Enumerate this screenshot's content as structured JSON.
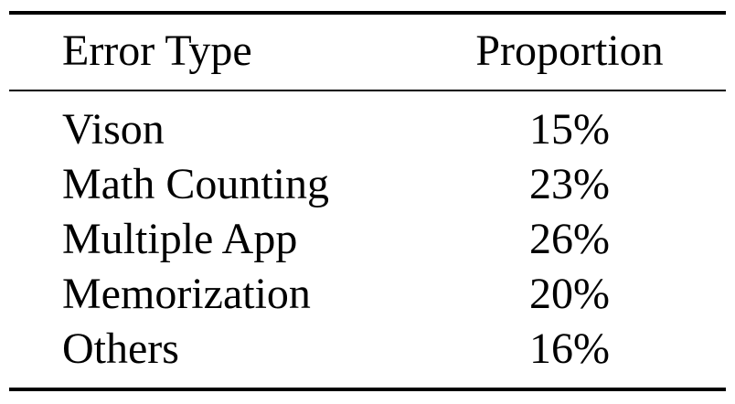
{
  "table": {
    "headers": {
      "error_type": "Error Type",
      "proportion": "Proportion"
    },
    "rows": [
      {
        "error_type": "Vison",
        "proportion": "15%"
      },
      {
        "error_type": "Math Counting",
        "proportion": "23%"
      },
      {
        "error_type": "Multiple App",
        "proportion": "26%"
      },
      {
        "error_type": "Memorization",
        "proportion": "20%"
      },
      {
        "error_type": "Others",
        "proportion": "16%"
      }
    ]
  }
}
